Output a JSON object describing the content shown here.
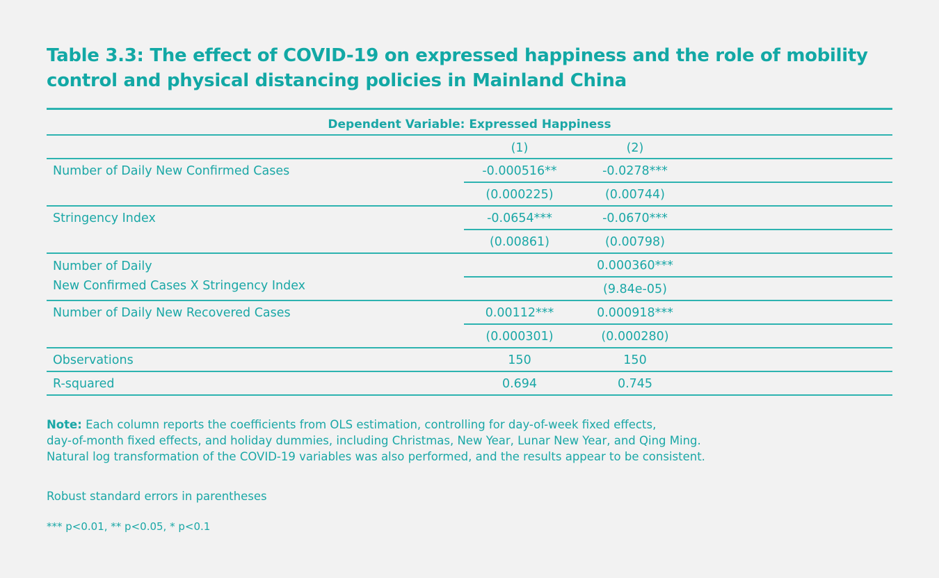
{
  "title": "Table 3.3: The effect of COVID-19 on expressed happiness and the role of mobility control and physical distancing policies in Mainland China",
  "table": {
    "dependent_variable": "Dependent Variable: Expressed Happiness",
    "columns": [
      "(1)",
      "(2)"
    ],
    "rows": [
      {
        "label": "Number of Daily New Confirmed Cases",
        "coef": [
          "-0.000516**",
          "-0.0278***"
        ],
        "se": [
          "(0.000225)",
          "(0.00744)"
        ]
      },
      {
        "label": "Stringency Index",
        "coef": [
          "-0.0654***",
          "-0.0670***"
        ],
        "se": [
          "(0.00861)",
          "(0.00798)"
        ]
      },
      {
        "label_line1": "Number of Daily",
        "label_line2": "New Confirmed Cases X Stringency Index",
        "coef": [
          "",
          "0.000360***"
        ],
        "se": [
          "",
          "(9.84e-05)"
        ]
      },
      {
        "label": "Number of Daily New Recovered Cases",
        "coef": [
          "0.00112***",
          "0.000918***"
        ],
        "se": [
          "(0.000301)",
          "(0.000280)"
        ]
      }
    ],
    "observations": {
      "label": "Observations",
      "values": [
        "150",
        "150"
      ]
    },
    "r_squared": {
      "label": "R-squared",
      "values": [
        "0.694",
        "0.745"
      ]
    }
  },
  "notes": {
    "note_label": "Note:",
    "note_line1": " Each column reports the coefficients from OLS estimation, controlling for day-of-week fixed effects,",
    "note_line2": "day-of-month fixed effects, and holiday dummies, including Christmas, New Year, Lunar New Year, and Qing Ming.",
    "note_line3": "Natural log transformation of the COVID-19 variables was also performed, and the results appear to be consistent.",
    "robust": "Robust standard errors in parentheses",
    "significance": "*** p<0.01, ** p<0.05, * p<0.1"
  },
  "colors": {
    "accent": "#12a8a5",
    "background": "#f2f2f2"
  }
}
